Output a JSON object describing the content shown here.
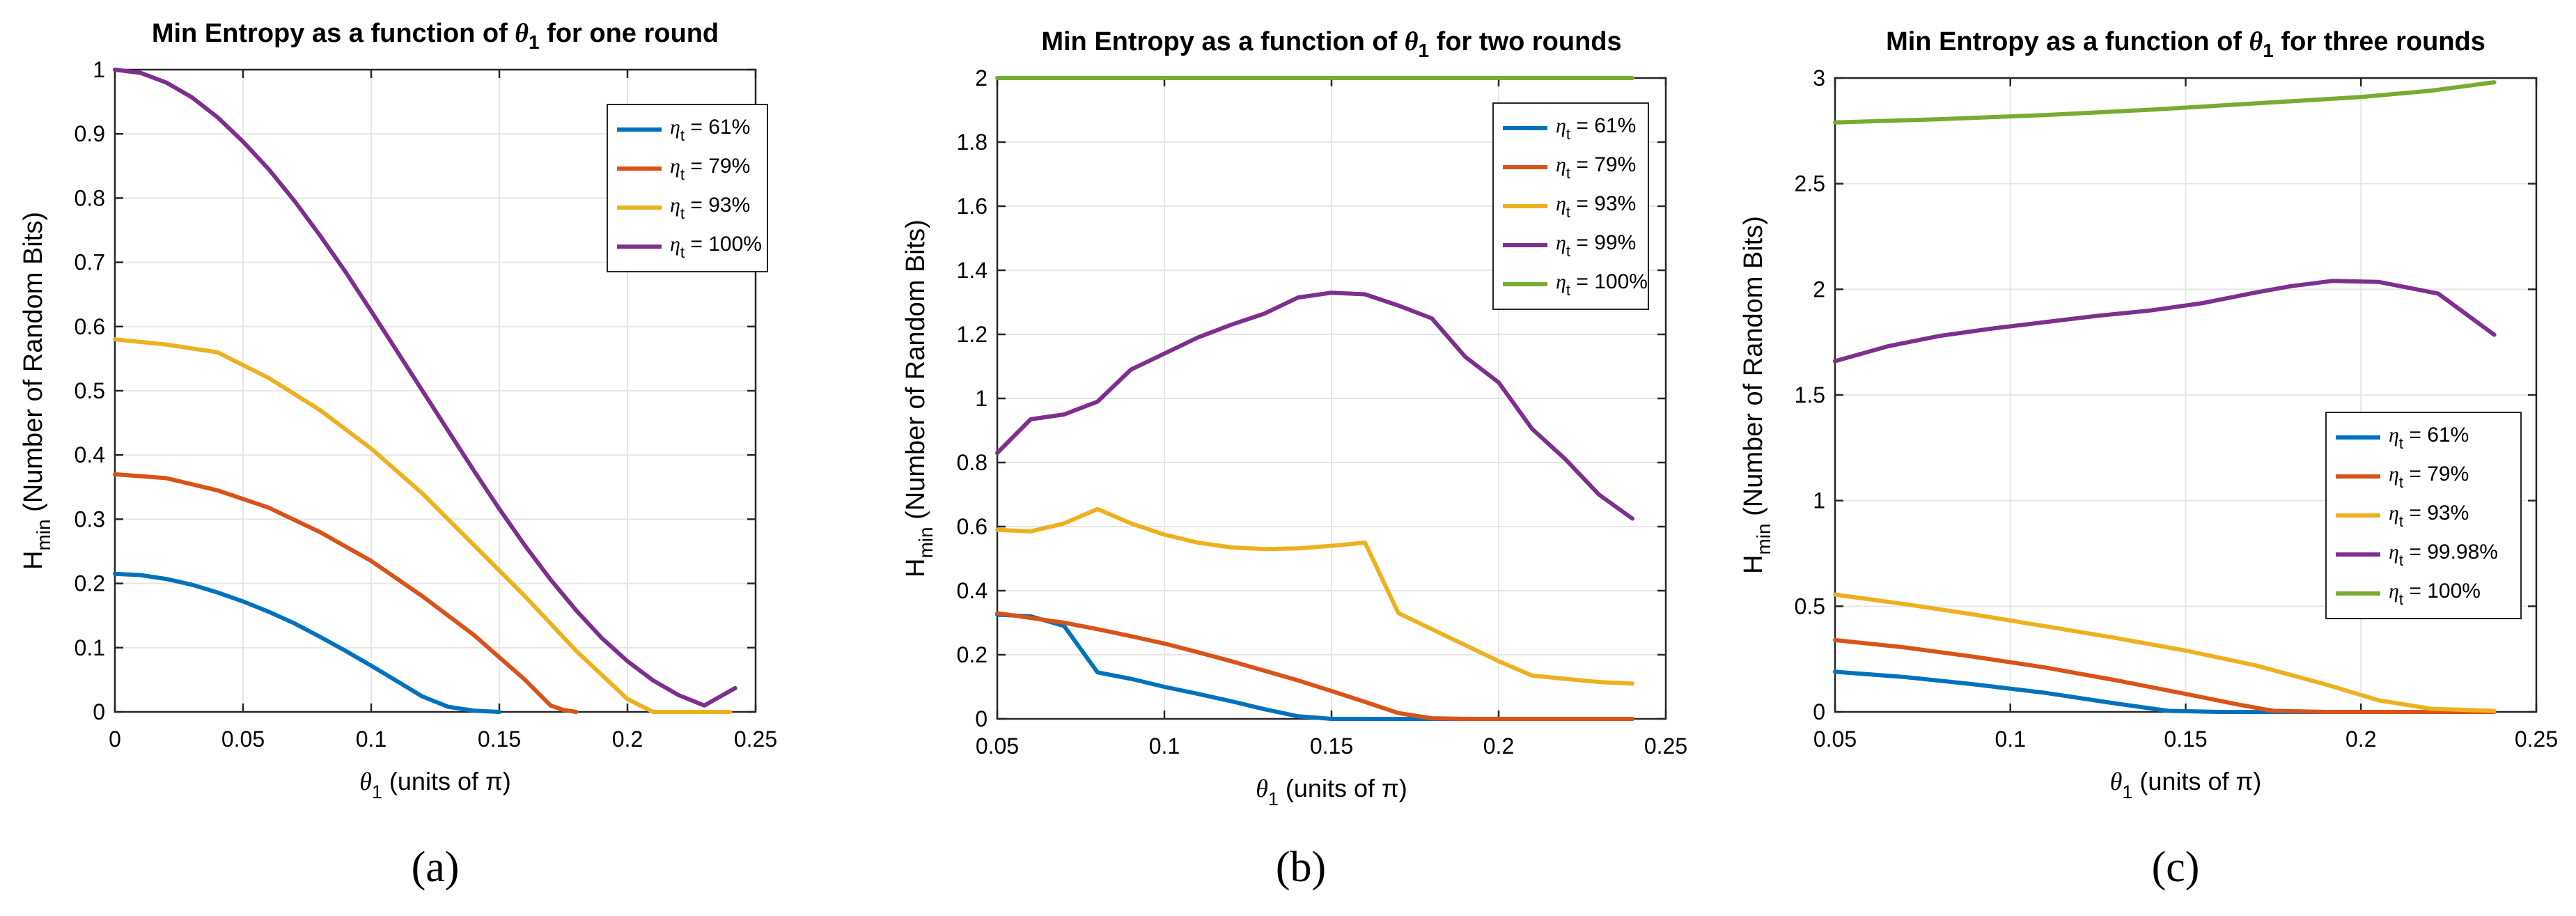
{
  "panel_labels": [
    "(a)",
    "(b)",
    "(c)"
  ],
  "colors": {
    "61": "#0072BD",
    "79": "#D95319",
    "93": "#EDB120",
    "99": "#7E2F8E",
    "100": "#77AC30",
    "grid": "#e6e6e6",
    "axis": "#262626"
  },
  "chart_data": [
    {
      "type": "line",
      "title": "Min Entropy as a function of θ1 for one round",
      "title_parts": [
        "Min Entropy as a function of ",
        "θ",
        "1",
        " for one round"
      ],
      "xlabel_parts": [
        "θ",
        "1",
        " (units of π)"
      ],
      "ylabel_parts": [
        "H",
        "min",
        " (Number of Random Bits)"
      ],
      "xlim": [
        0,
        0.25
      ],
      "ylim": [
        0,
        1
      ],
      "xticks": [
        0,
        0.05,
        0.1,
        0.15,
        0.2,
        0.25
      ],
      "xtick_labels": [
        "0",
        "0.05",
        "0.1",
        "0.15",
        "0.2",
        "0.25"
      ],
      "yticks": [
        0,
        0.1,
        0.2,
        0.3,
        0.4,
        0.5,
        0.6,
        0.7,
        0.8,
        0.9,
        1
      ],
      "ytick_labels": [
        "0",
        "0.1",
        "0.2",
        "0.3",
        "0.4",
        "0.5",
        "0.6",
        "0.7",
        "0.8",
        "0.9",
        "1"
      ],
      "grid": true,
      "legend_position": "top-right",
      "series": [
        {
          "name": "η_t = 61%",
          "label_pre": "η",
          "label_sub": "t",
          "label_post": " = 61%",
          "color_key": "61",
          "x": [
            0,
            0.01,
            0.02,
            0.03,
            0.04,
            0.05,
            0.06,
            0.07,
            0.08,
            0.09,
            0.1,
            0.11,
            0.12,
            0.13,
            0.14,
            0.15
          ],
          "y": [
            0.215,
            0.213,
            0.207,
            0.198,
            0.186,
            0.172,
            0.156,
            0.138,
            0.117,
            0.095,
            0.072,
            0.048,
            0.024,
            0.008,
            0.002,
            0.0
          ]
        },
        {
          "name": "η_t = 79%",
          "label_pre": "η",
          "label_sub": "t",
          "label_post": " = 79%",
          "color_key": "79",
          "x": [
            0,
            0.02,
            0.04,
            0.06,
            0.08,
            0.1,
            0.12,
            0.14,
            0.16,
            0.17,
            0.175,
            0.18
          ],
          "y": [
            0.37,
            0.364,
            0.345,
            0.318,
            0.28,
            0.235,
            0.18,
            0.12,
            0.05,
            0.01,
            0.003,
            0.0
          ]
        },
        {
          "name": "η_t = 93%",
          "label_pre": "η",
          "label_sub": "t",
          "label_post": " = 93%",
          "color_key": "93",
          "x": [
            0,
            0.02,
            0.04,
            0.06,
            0.08,
            0.1,
            0.12,
            0.14,
            0.16,
            0.18,
            0.2,
            0.21,
            0.22,
            0.24
          ],
          "y": [
            0.58,
            0.572,
            0.56,
            0.52,
            0.47,
            0.41,
            0.34,
            0.26,
            0.18,
            0.095,
            0.02,
            0.0,
            0.0,
            0.0
          ]
        },
        {
          "name": "η_t = 100%",
          "label_pre": "η",
          "label_sub": "t",
          "label_post": " = 100%",
          "color_key": "99",
          "x": [
            0,
            0.01,
            0.02,
            0.03,
            0.04,
            0.05,
            0.06,
            0.07,
            0.08,
            0.09,
            0.1,
            0.11,
            0.12,
            0.13,
            0.14,
            0.15,
            0.16,
            0.17,
            0.18,
            0.19,
            0.2,
            0.21,
            0.22,
            0.23,
            0.242
          ],
          "y": [
            1.0,
            0.995,
            0.98,
            0.957,
            0.926,
            0.888,
            0.845,
            0.796,
            0.742,
            0.685,
            0.624,
            0.562,
            0.5,
            0.438,
            0.376,
            0.316,
            0.259,
            0.206,
            0.158,
            0.115,
            0.079,
            0.049,
            0.026,
            0.01,
            0.037
          ]
        }
      ]
    },
    {
      "type": "line",
      "title": "Min Entropy as a function of θ1 for two rounds",
      "title_parts": [
        "Min Entropy as a function of ",
        "θ",
        "1",
        " for two rounds"
      ],
      "xlabel_parts": [
        "θ",
        "1",
        " (units of π)"
      ],
      "ylabel_parts": [
        "H",
        "min",
        " (Number of Random Bits)"
      ],
      "xlim": [
        0.05,
        0.25
      ],
      "ylim": [
        0,
        2
      ],
      "xticks": [
        0.05,
        0.1,
        0.15,
        0.2,
        0.25
      ],
      "xtick_labels": [
        "0.05",
        "0.1",
        "0.15",
        "0.2",
        "0.25"
      ],
      "yticks": [
        0,
        0.2,
        0.4,
        0.6,
        0.8,
        1,
        1.2,
        1.4,
        1.6,
        1.8,
        2
      ],
      "ytick_labels": [
        "0",
        "0.2",
        "0.4",
        "0.6",
        "0.8",
        "1",
        "1.2",
        "1.4",
        "1.6",
        "1.8",
        "2"
      ],
      "grid": true,
      "legend_position": "top-right",
      "series": [
        {
          "name": "η_t = 61%",
          "label_pre": "η",
          "label_sub": "t",
          "label_post": " = 61%",
          "color_key": "61",
          "x": [
            0.05,
            0.06,
            0.07,
            0.08,
            0.09,
            0.1,
            0.11,
            0.12,
            0.13,
            0.14,
            0.15,
            0.16,
            0.17,
            0.18,
            0.19,
            0.2,
            0.21,
            0.22,
            0.23,
            0.24
          ],
          "y": [
            0.325,
            0.32,
            0.29,
            0.145,
            0.125,
            0.1,
            0.078,
            0.055,
            0.03,
            0.008,
            0.0,
            0.0,
            0.0,
            0.0,
            0.0,
            0.0,
            0.0,
            0.0,
            0.0,
            0.0
          ]
        },
        {
          "name": "η_t = 79%",
          "label_pre": "η",
          "label_sub": "t",
          "label_post": " = 79%",
          "color_key": "79",
          "x": [
            0.05,
            0.06,
            0.07,
            0.08,
            0.09,
            0.1,
            0.11,
            0.12,
            0.13,
            0.14,
            0.15,
            0.16,
            0.17,
            0.18,
            0.19,
            0.2,
            0.21,
            0.22,
            0.23,
            0.24
          ],
          "y": [
            0.33,
            0.315,
            0.3,
            0.28,
            0.258,
            0.235,
            0.208,
            0.18,
            0.15,
            0.12,
            0.087,
            0.053,
            0.018,
            0.002,
            0.0,
            0.0,
            0.0,
            0.0,
            0.0,
            0.0
          ]
        },
        {
          "name": "η_t = 93%",
          "label_pre": "η",
          "label_sub": "t",
          "label_post": " = 93%",
          "color_key": "93",
          "x": [
            0.05,
            0.06,
            0.07,
            0.08,
            0.09,
            0.1,
            0.11,
            0.12,
            0.13,
            0.14,
            0.15,
            0.16,
            0.17,
            0.18,
            0.19,
            0.2,
            0.21,
            0.22,
            0.23,
            0.24
          ],
          "y": [
            0.59,
            0.585,
            0.61,
            0.655,
            0.61,
            0.575,
            0.55,
            0.535,
            0.53,
            0.532,
            0.54,
            0.55,
            0.33,
            0.28,
            0.23,
            0.18,
            0.135,
            0.125,
            0.115,
            0.11
          ]
        },
        {
          "name": "η_t = 99%",
          "label_pre": "η",
          "label_sub": "t",
          "label_post": " = 99%",
          "color_key": "99",
          "x": [
            0.05,
            0.06,
            0.07,
            0.08,
            0.09,
            0.1,
            0.11,
            0.12,
            0.13,
            0.14,
            0.15,
            0.16,
            0.17,
            0.18,
            0.19,
            0.2,
            0.21,
            0.22,
            0.23,
            0.24
          ],
          "y": [
            0.83,
            0.935,
            0.95,
            0.99,
            1.09,
            1.14,
            1.19,
            1.23,
            1.265,
            1.315,
            1.33,
            1.325,
            1.29,
            1.25,
            1.13,
            1.05,
            0.905,
            0.81,
            0.7,
            0.625
          ]
        },
        {
          "name": "η_t = 100%",
          "label_pre": "η",
          "label_sub": "t",
          "label_post": " = 100%",
          "color_key": "100",
          "x": [
            0.05,
            0.24
          ],
          "y": [
            2.0,
            2.0
          ]
        }
      ]
    },
    {
      "type": "line",
      "title": "Min Entropy as a function of θ1 for three rounds",
      "title_parts": [
        "Min Entropy as a function of ",
        "θ",
        "1",
        " for three rounds"
      ],
      "xlabel_parts": [
        "θ",
        "1",
        " (units of π)"
      ],
      "ylabel_parts": [
        "H",
        "min",
        " (Number of Random Bits)"
      ],
      "xlim": [
        0.05,
        0.25
      ],
      "ylim": [
        0,
        3
      ],
      "xticks": [
        0.05,
        0.1,
        0.15,
        0.2,
        0.25
      ],
      "xtick_labels": [
        "0.05",
        "0.1",
        "0.15",
        "0.2",
        "0.25"
      ],
      "yticks": [
        0,
        0.5,
        1,
        1.5,
        2,
        2.5,
        3
      ],
      "ytick_labels": [
        "0",
        "0.5",
        "1",
        "1.5",
        "2",
        "2.5",
        "3"
      ],
      "grid": true,
      "legend_position": "bottom-right",
      "series": [
        {
          "name": "η_t = 61%",
          "label_pre": "η",
          "label_sub": "t",
          "label_post": " = 61%",
          "color_key": "61",
          "x": [
            0.05,
            0.07,
            0.09,
            0.11,
            0.13,
            0.145,
            0.16,
            0.18,
            0.2,
            0.22,
            0.238
          ],
          "y": [
            0.19,
            0.165,
            0.13,
            0.09,
            0.04,
            0.005,
            0.0,
            0.0,
            0.0,
            0.0,
            0.0
          ]
        },
        {
          "name": "η_t = 79%",
          "label_pre": "η",
          "label_sub": "t",
          "label_post": " = 79%",
          "color_key": "79",
          "x": [
            0.05,
            0.07,
            0.09,
            0.11,
            0.13,
            0.15,
            0.165,
            0.175,
            0.19,
            0.21,
            0.238
          ],
          "y": [
            0.34,
            0.305,
            0.26,
            0.21,
            0.15,
            0.085,
            0.035,
            0.005,
            0.0,
            0.0,
            0.0
          ]
        },
        {
          "name": "η_t = 93%",
          "label_pre": "η",
          "label_sub": "t",
          "label_post": " = 93%",
          "color_key": "93",
          "x": [
            0.05,
            0.07,
            0.09,
            0.11,
            0.13,
            0.15,
            0.17,
            0.19,
            0.205,
            0.22,
            0.238
          ],
          "y": [
            0.555,
            0.51,
            0.46,
            0.405,
            0.35,
            0.29,
            0.22,
            0.13,
            0.055,
            0.015,
            0.005
          ]
        },
        {
          "name": "η_t = 99.98%",
          "label_pre": "η",
          "label_sub": "t",
          "label_post": " = 99.98%",
          "color_key": "99",
          "x": [
            0.05,
            0.065,
            0.08,
            0.095,
            0.11,
            0.125,
            0.14,
            0.155,
            0.17,
            0.18,
            0.192,
            0.205,
            0.222,
            0.238
          ],
          "y": [
            1.66,
            1.73,
            1.78,
            1.815,
            1.845,
            1.875,
            1.9,
            1.935,
            1.985,
            2.015,
            2.04,
            2.035,
            1.98,
            1.785
          ]
        },
        {
          "name": "η_t = 100%",
          "label_pre": "η",
          "label_sub": "t",
          "label_post": " = 100%",
          "color_key": "100",
          "x": [
            0.05,
            0.08,
            0.11,
            0.14,
            0.17,
            0.2,
            0.22,
            0.238
          ],
          "y": [
            2.79,
            2.805,
            2.825,
            2.85,
            2.88,
            2.91,
            2.94,
            2.98
          ]
        }
      ]
    }
  ]
}
